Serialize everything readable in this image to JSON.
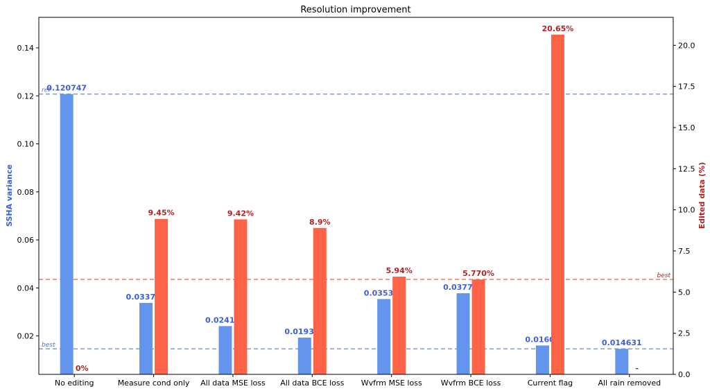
{
  "chart_data": {
    "type": "bar",
    "title": "Resolution improvement",
    "categories": [
      "No editing",
      "Measure cond only",
      "All data MSE loss",
      "All data BCE loss",
      "Wvfrm MSE loss",
      "Wvfrm BCE loss",
      "Current flag",
      "All rain removed"
    ],
    "series": [
      {
        "axis": "left",
        "color": "#6495ED",
        "values": [
          0.120747,
          0.033759,
          0.024109,
          0.019311,
          0.035373,
          0.037796,
          0.01603,
          0.014631
        ],
        "labels": [
          "0.120747",
          "0.033759",
          "0.024109",
          "0.019311",
          "0.035373",
          "0.037796",
          "0.01603",
          "0.014631"
        ]
      },
      {
        "axis": "right",
        "color": "#FF6347",
        "values": [
          0,
          9.45,
          9.42,
          8.9,
          5.94,
          5.77,
          20.65,
          null
        ],
        "labels": [
          "0%",
          "9.45%",
          "9.42%",
          "8.9%",
          "5.94%",
          "5.770%",
          "20.65%",
          "-"
        ]
      }
    ],
    "ylabel": "SSHA variance",
    "ylabel_right": "Edited data (%)",
    "ylim": [
      0.004,
      0.1527
    ],
    "ylim_right": [
      0,
      21.7
    ],
    "yticks": [
      0.02,
      0.04,
      0.06,
      0.08,
      0.1,
      0.12,
      0.14
    ],
    "ytick_labels": [
      "0.02",
      "0.04",
      "0.06",
      "0.08",
      "0.10",
      "0.12",
      "0.14"
    ],
    "yticks_right": [
      0,
      2.5,
      5,
      7.5,
      10,
      12.5,
      15,
      17.5,
      20
    ],
    "ytick_labels_right": [
      "0.0",
      "2.5",
      "5.0",
      "7.5",
      "10.0",
      "12.5",
      "15.0",
      "17.5",
      "20.0"
    ],
    "reference_lines": [
      {
        "axis": "left",
        "value": 0.120747,
        "label": "ref",
        "color": "#6495ED",
        "label_side": "left"
      },
      {
        "axis": "left",
        "value": 0.014631,
        "label": "best",
        "color": "#6495ED",
        "label_side": "left"
      },
      {
        "axis": "right",
        "value": 5.77,
        "label": "best",
        "color": "#FF6347",
        "label_side": "right"
      }
    ],
    "grid": false,
    "legend": "none"
  }
}
